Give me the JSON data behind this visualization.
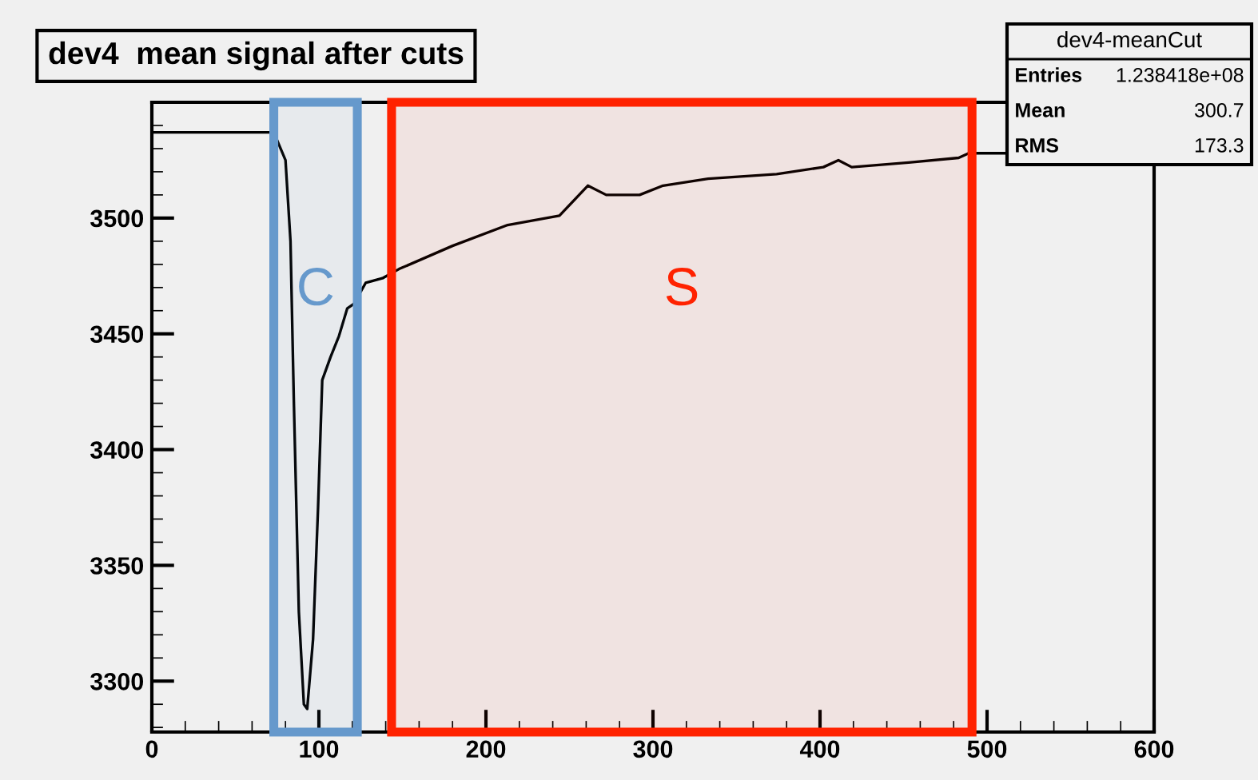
{
  "chart_data": {
    "type": "line",
    "title": "dev4  mean signal after cuts",
    "x": [
      0,
      20,
      40,
      60,
      73,
      80,
      83,
      85,
      88,
      91,
      93,
      96.5,
      99.5,
      102,
      107,
      112,
      117,
      121,
      128,
      138,
      148,
      180,
      213,
      244,
      261,
      272,
      292,
      306,
      333,
      374,
      402,
      411,
      419,
      453,
      483,
      489,
      511
    ],
    "series": [
      {
        "color": "#000000",
        "values": [
          3537,
          3537,
          3537,
          3537,
          3537,
          3525,
          3490,
          3421,
          3330,
          3290,
          3288,
          3318,
          3375,
          3430,
          3440,
          3449,
          3461,
          3463,
          3472,
          3474,
          3478,
          3488,
          3497,
          3501,
          3514,
          3510,
          3510,
          3514,
          3517,
          3519,
          3522,
          3525,
          3522,
          3524,
          3526,
          3528,
          3528
        ]
      }
    ],
    "xlim": [
      0,
      600
    ],
    "ylim": [
      3278,
      3550
    ],
    "xticks": [
      0,
      100,
      200,
      300,
      400,
      500,
      600
    ],
    "yticks": [
      3300,
      3350,
      3400,
      3450,
      3500
    ],
    "grid": false,
    "legend": false,
    "marker": "none",
    "line_style": "solid",
    "bands": [
      {
        "axis": "x",
        "from": 73,
        "to": 123,
        "label": "C",
        "color": "#6699cc"
      },
      {
        "axis": "x",
        "from": 143.5,
        "to": 491,
        "label": "S",
        "color": "#ff2200"
      }
    ],
    "annotations": [
      "dev4-meanCut",
      "Entries 1.238418e+08",
      "Mean 300.7",
      "RMS 173.3"
    ]
  }
}
